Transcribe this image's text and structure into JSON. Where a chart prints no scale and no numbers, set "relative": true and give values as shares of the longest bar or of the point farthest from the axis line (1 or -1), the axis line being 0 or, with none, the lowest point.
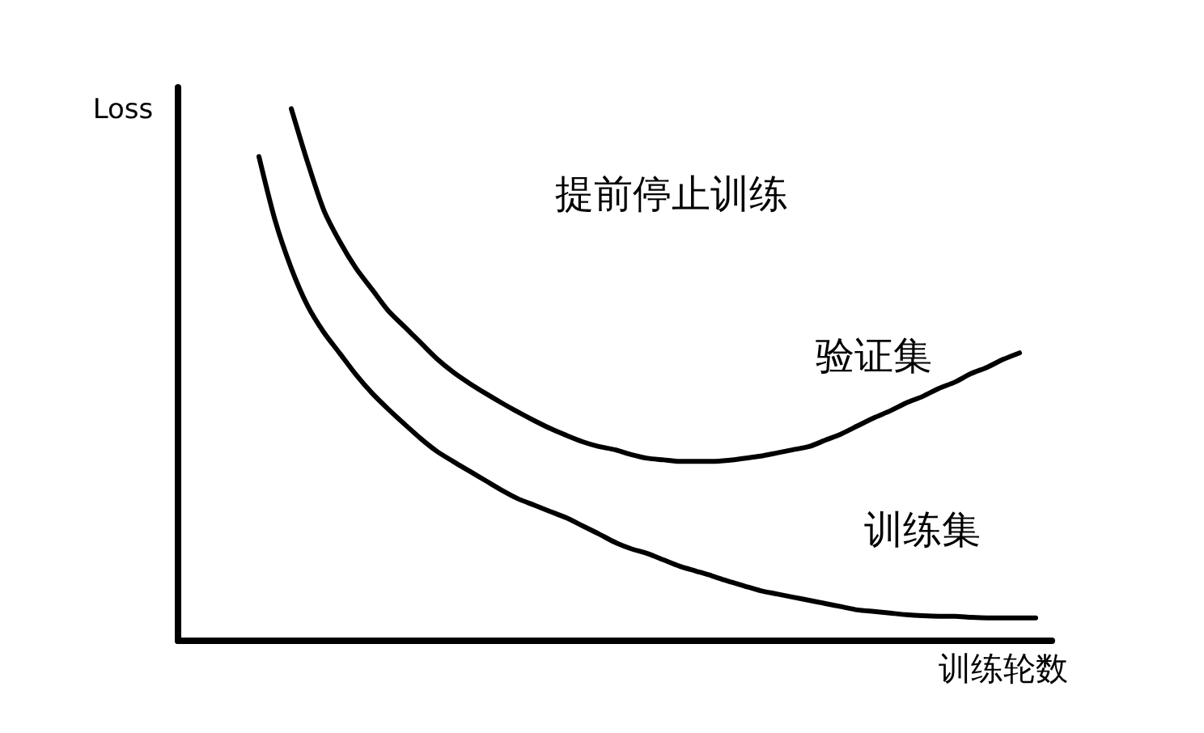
{
  "chart_data": {
    "type": "line",
    "relative": true,
    "xlabel": "训练轮数",
    "ylabel": "Loss",
    "annotations": [
      "提前停止训练"
    ],
    "categories": [
      null,
      null,
      null,
      null,
      null,
      null,
      null,
      null,
      null,
      null,
      null,
      null,
      null,
      null,
      null,
      null,
      null,
      null,
      null,
      null,
      null,
      null,
      null,
      null,
      null,
      null,
      null,
      null,
      null,
      null,
      null,
      null,
      null,
      null,
      null,
      null,
      null,
      null,
      null,
      null,
      null,
      null,
      null,
      null,
      null,
      null,
      null,
      null,
      null,
      null,
      null,
      null,
      null,
      null,
      null
    ],
    "series": [
      {
        "name": "验证集",
        "color": "#000000",
        "values": [
          null,
          null,
          null,
          null,
          null,
          null,
          null,
          1.0,
          0.9,
          0.81,
          0.75,
          0.7,
          0.66,
          0.62,
          0.59,
          0.56,
          0.53,
          0.505,
          0.484,
          0.465,
          0.447,
          0.43,
          0.414,
          0.399,
          0.386,
          0.374,
          0.365,
          0.359,
          0.35,
          0.343,
          0.34,
          0.337,
          0.337,
          0.337,
          0.339,
          0.343,
          0.347,
          0.353,
          0.359,
          0.365,
          0.377,
          0.389,
          0.404,
          0.419,
          0.432,
          0.447,
          0.459,
          0.474,
          0.486,
          0.502,
          0.514,
          0.529,
          0.541,
          null,
          null
        ]
      },
      {
        "name": "训练集",
        "color": "#000000",
        "values": [
          null,
          null,
          null,
          null,
          null,
          0.91,
          0.79,
          0.7,
          0.63,
          0.58,
          0.54,
          0.5,
          0.465,
          0.435,
          0.407,
          0.38,
          0.356,
          0.337,
          0.319,
          0.301,
          0.283,
          0.267,
          0.255,
          0.243,
          0.231,
          0.216,
          0.201,
          0.185,
          0.173,
          0.164,
          0.152,
          0.14,
          0.131,
          0.122,
          0.112,
          0.103,
          0.094,
          0.088,
          0.082,
          0.076,
          0.07,
          0.064,
          0.058,
          0.055,
          0.052,
          0.049,
          0.047,
          0.046,
          0.046,
          0.044,
          0.043,
          0.043,
          0.043,
          0.043,
          null
        ]
      }
    ]
  }
}
